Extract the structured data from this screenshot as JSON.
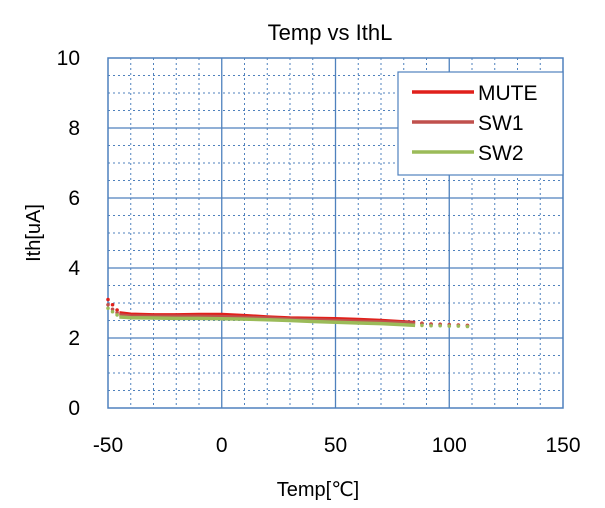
{
  "chart_data": {
    "type": "line",
    "title": "Temp vs IthL",
    "xlabel": "Temp[℃]",
    "ylabel": "Ith[uA]",
    "xlim": [
      -50,
      150
    ],
    "ylim": [
      0,
      10
    ],
    "x_ticks": [
      "-50",
      "0",
      "50",
      "100",
      "150"
    ],
    "y_ticks": [
      "0",
      "2",
      "4",
      "6",
      "8",
      "10"
    ],
    "grid": "major solid, minor dotted",
    "legend_position": "top-right",
    "series": [
      {
        "name": "MUTE",
        "color": "#e0201b",
        "x": [
          -45,
          -40,
          -30,
          -20,
          -10,
          0,
          10,
          20,
          30,
          40,
          50,
          60,
          70,
          80,
          85
        ],
        "y": [
          2.72,
          2.68,
          2.66,
          2.66,
          2.67,
          2.67,
          2.64,
          2.6,
          2.57,
          2.56,
          2.55,
          2.53,
          2.5,
          2.46,
          2.44
        ],
        "dotted_x": [
          -50,
          -48,
          -46,
          88,
          92,
          96,
          100,
          104,
          108
        ],
        "dotted_y": [
          3.1,
          2.95,
          2.8,
          2.42,
          2.4,
          2.39,
          2.38,
          2.37,
          2.36
        ]
      },
      {
        "name": "SW1",
        "color": "#c0504d",
        "x": [
          -45,
          -40,
          -30,
          -20,
          -10,
          0,
          10,
          20,
          30,
          40,
          50,
          60,
          70,
          80,
          85
        ],
        "y": [
          2.66,
          2.63,
          2.62,
          2.62,
          2.62,
          2.61,
          2.59,
          2.57,
          2.54,
          2.52,
          2.5,
          2.48,
          2.46,
          2.44,
          2.42
        ],
        "dotted_x": [
          -50,
          -48,
          -46,
          88,
          92,
          96,
          100,
          104,
          108
        ],
        "dotted_y": [
          2.95,
          2.82,
          2.72,
          2.41,
          2.39,
          2.38,
          2.37,
          2.36,
          2.35
        ]
      },
      {
        "name": "SW2",
        "color": "#9bbb59",
        "x": [
          -45,
          -40,
          -30,
          -20,
          -10,
          0,
          10,
          20,
          30,
          40,
          50,
          60,
          70,
          80,
          85
        ],
        "y": [
          2.6,
          2.58,
          2.57,
          2.56,
          2.56,
          2.55,
          2.54,
          2.52,
          2.5,
          2.47,
          2.45,
          2.43,
          2.41,
          2.38,
          2.36
        ],
        "dotted_x": [
          -50,
          -48,
          -46,
          88,
          92,
          96,
          100,
          104,
          108
        ],
        "dotted_y": [
          2.85,
          2.75,
          2.66,
          2.36,
          2.35,
          2.35,
          2.34,
          2.34,
          2.33
        ]
      }
    ]
  }
}
